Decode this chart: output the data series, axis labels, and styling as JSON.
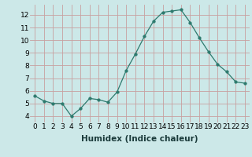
{
  "x": [
    0,
    1,
    2,
    3,
    4,
    5,
    6,
    7,
    8,
    9,
    10,
    11,
    12,
    13,
    14,
    15,
    16,
    17,
    18,
    19,
    20,
    21,
    22,
    23
  ],
  "y": [
    5.6,
    5.2,
    5.0,
    5.0,
    4.0,
    4.6,
    5.4,
    5.3,
    5.1,
    5.9,
    7.6,
    8.9,
    10.3,
    11.5,
    12.2,
    12.3,
    12.4,
    11.4,
    10.2,
    9.1,
    8.1,
    7.5,
    6.7,
    6.6
  ],
  "line_color": "#2d7a6e",
  "marker": "o",
  "marker_size": 2.5,
  "bg_color": "#cce8e8",
  "grid_color_major": "#c8a0a0",
  "grid_color_minor": "#b8d8d4",
  "xlabel": "Humidex (Indice chaleur)",
  "xlim": [
    -0.5,
    23.5
  ],
  "ylim": [
    3.5,
    12.8
  ],
  "xticks": [
    0,
    1,
    2,
    3,
    4,
    5,
    6,
    7,
    8,
    9,
    10,
    11,
    12,
    13,
    14,
    15,
    16,
    17,
    18,
    19,
    20,
    21,
    22,
    23
  ],
  "yticks": [
    4,
    5,
    6,
    7,
    8,
    9,
    10,
    11,
    12
  ],
  "axis_fontsize": 6.5,
  "label_fontsize": 7.5
}
